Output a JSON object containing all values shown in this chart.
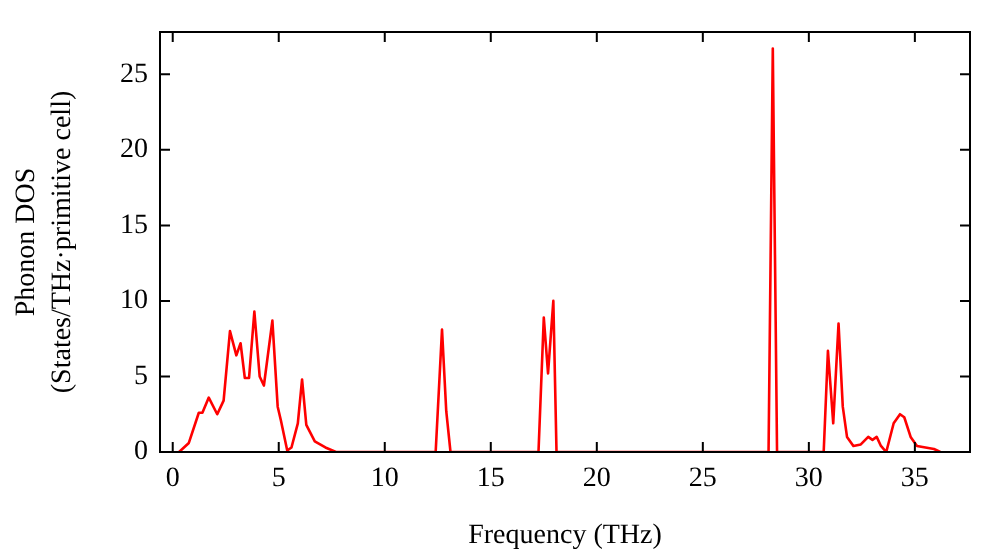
{
  "chart_data": {
    "type": "line",
    "xlabel": "Frequency (THz)",
    "ylabel": "Phonon DOS\n(States/THz·primitive cell)",
    "xlim": [
      -0.6,
      37.6
    ],
    "ylim": [
      0,
      27.8
    ],
    "xticks": [
      0,
      5,
      10,
      15,
      20,
      25,
      30,
      35
    ],
    "yticks": [
      0,
      5,
      10,
      15,
      20,
      25
    ],
    "grid": false,
    "legend": false,
    "marker": "none",
    "line_style": "solid",
    "series": [
      {
        "color": "#ff0000",
        "x": [
          0.3,
          0.76,
          1.23,
          1.4,
          1.7,
          2.1,
          2.4,
          2.7,
          3.0,
          3.2,
          3.4,
          3.6,
          3.85,
          4.1,
          4.3,
          4.7,
          4.95,
          5.1,
          5.4,
          5.6,
          5.9,
          6.1,
          6.3,
          6.7,
          7.2,
          7.7,
          12.4,
          12.7,
          12.9,
          13.1,
          17.25,
          17.5,
          17.7,
          17.95,
          18.1,
          28.1,
          28.3,
          28.5,
          30.7,
          30.9,
          31.15,
          31.4,
          31.6,
          31.8,
          32.1,
          32.45,
          32.8,
          33.0,
          33.2,
          33.4,
          33.65,
          34.0,
          34.3,
          34.5,
          34.8,
          35.1,
          35.9,
          36.2
        ],
        "values": [
          0,
          0.6,
          2.6,
          2.6,
          3.6,
          2.5,
          3.4,
          8.0,
          6.4,
          7.2,
          4.9,
          4.9,
          9.3,
          5.0,
          4.4,
          8.7,
          3.0,
          2.1,
          0.1,
          0.3,
          1.9,
          4.8,
          1.8,
          0.7,
          0.3,
          0,
          0,
          8.1,
          2.7,
          0,
          0,
          8.9,
          5.2,
          10.0,
          0,
          0,
          26.7,
          0,
          0,
          6.7,
          1.9,
          8.5,
          3.0,
          1.0,
          0.4,
          0.5,
          1.0,
          0.8,
          1.0,
          0.4,
          0,
          1.9,
          2.5,
          2.3,
          1.0,
          0.4,
          0.2,
          0
        ]
      }
    ]
  }
}
